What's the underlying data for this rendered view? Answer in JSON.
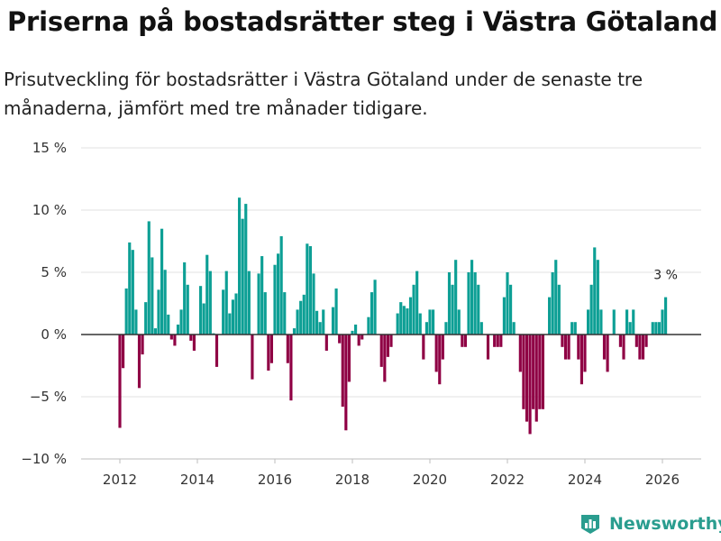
{
  "title": "Priserna på bostadsrätter steg i Västra Götaland",
  "subtitle": "Prisutveckling för bostadsrätter i Västra Götaland under de senaste tre månaderna, jämfört med tre månader tidigare.",
  "brand": {
    "name": "Newsworthy",
    "icon": "newsworthy-logo-icon",
    "color": "#2a9d8f"
  },
  "colors": {
    "positive": "#0d9f95",
    "negative": "#8f0044",
    "grid": "#e0e0e0",
    "axis": "#333333"
  },
  "chart_data": {
    "type": "bar",
    "title": "Priserna på bostadsrätter steg i Västra Götaland",
    "xlabel": "",
    "ylabel": "",
    "ylim": [
      -10,
      15
    ],
    "xlim": [
      2011.0,
      2027.0
    ],
    "yticks": [
      -10,
      -5,
      0,
      5,
      10,
      15
    ],
    "ytick_labels": [
      "−10 %",
      "−5 %",
      "0 %",
      "5 %",
      "10 %",
      "15 %"
    ],
    "xticks": [
      2012,
      2014,
      2016,
      2018,
      2020,
      2022,
      2024,
      2026
    ],
    "xtick_labels": [
      "2012",
      "2014",
      "2016",
      "2018",
      "2020",
      "2022",
      "2024",
      "2026"
    ],
    "start": "2012-01",
    "frequency": "monthly",
    "unit": "%",
    "values": [
      -7.5,
      -2.7,
      3.7,
      7.4,
      6.8,
      2,
      -4.3,
      -1.6,
      2.6,
      9.1,
      6.2,
      0.5,
      3.6,
      8.5,
      5.2,
      1.6,
      -0.4,
      -0.9,
      0.8,
      2,
      5.8,
      4,
      -0.5,
      -1.3,
      0,
      3.9,
      2.5,
      6.4,
      5.1,
      0.1,
      -2.6,
      0,
      3.6,
      5.1,
      1.7,
      2.8,
      3.3,
      11,
      9.3,
      10.5,
      5.1,
      -3.6,
      0,
      4.9,
      6.3,
      3.4,
      -2.9,
      -2.3,
      5.6,
      6.5,
      7.9,
      3.4,
      -2.3,
      -5.3,
      0.5,
      2,
      2.7,
      3.2,
      7.3,
      7.1,
      4.9,
      1.9,
      1,
      2,
      -1.3,
      0,
      2.2,
      3.7,
      -0.7,
      -5.8,
      -7.7,
      -3.8,
      0.3,
      0.8,
      -0.9,
      -0.4,
      0,
      1.4,
      3.4,
      4.4,
      0,
      -2.6,
      -3.8,
      -1.8,
      -1,
      0,
      1.7,
      2.6,
      2.3,
      2.1,
      3,
      4,
      5.1,
      1.7,
      -2,
      1,
      2,
      2,
      -3,
      -4,
      -2,
      1,
      5,
      4,
      6,
      2,
      -1,
      -1,
      5,
      6,
      5,
      4,
      1,
      0,
      -2,
      0,
      -1,
      -1,
      -1,
      3,
      5,
      4,
      1,
      0,
      -3,
      -6,
      -7,
      -8,
      -6,
      -7,
      -6,
      -6,
      0,
      3,
      5,
      6,
      4,
      -1,
      -2,
      -2,
      1,
      1,
      -2,
      -4,
      -3,
      2,
      4,
      7,
      6,
      2,
      -2,
      -3,
      0,
      2,
      0,
      -1,
      -2,
      2,
      1,
      2,
      -1,
      -2,
      -2,
      -1,
      0,
      1,
      1,
      1,
      2,
      3
    ],
    "annotations": [
      {
        "label": "3 %",
        "target": "last-bar"
      }
    ]
  }
}
